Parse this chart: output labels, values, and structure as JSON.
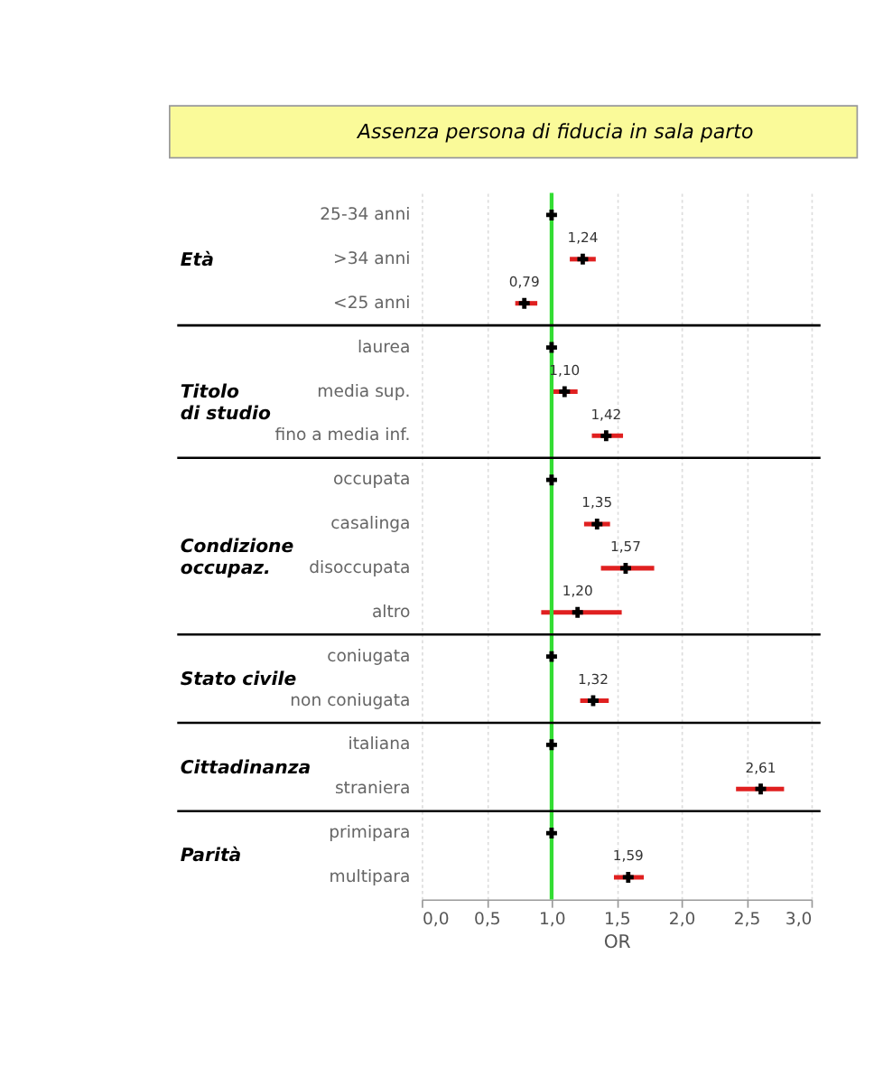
{
  "chart_data": {
    "type": "scatter",
    "title": "Assenza persona di fiducia in sala parto",
    "xlabel": "OR",
    "categories": [
      "25-34 anni",
      ">34 anni",
      "<25 anni",
      "laurea",
      "media sup.",
      "fino a media inf.",
      "occupata",
      "casalinga",
      "disoccupata",
      "altro",
      "coniugata",
      "non coniugata",
      "italiana",
      "straniera",
      "primipara",
      "multipara"
    ],
    "values": [
      1.0,
      1.24,
      0.79,
      1.0,
      1.1,
      1.42,
      1.0,
      1.35,
      1.57,
      1.2,
      1.0,
      1.32,
      1.0,
      2.61,
      1.0,
      1.59
    ],
    "errors": [
      null,
      [
        1.14,
        1.34
      ],
      [
        0.72,
        0.89
      ],
      null,
      [
        1.0,
        1.2
      ],
      [
        1.31,
        1.55
      ],
      null,
      [
        1.25,
        1.45
      ],
      [
        1.38,
        1.79
      ],
      [
        0.92,
        1.54
      ],
      null,
      [
        1.22,
        1.44
      ],
      null,
      [
        2.42,
        2.79
      ],
      null,
      [
        1.48,
        1.71
      ]
    ],
    "value_labels": [
      null,
      "1,24",
      "0,79",
      null,
      "1,10",
      "1,42",
      null,
      "1,35",
      "1,57",
      "1,20",
      null,
      "1,32",
      null,
      "2,61",
      null,
      "1,59"
    ],
    "orientation": "horizontal",
    "color": "#000000",
    "xlim": [
      0,
      3
    ],
    "xticks": [
      {
        "value": 0,
        "label": "0,0"
      },
      {
        "value": 0.5,
        "label": "0,5"
      },
      {
        "value": 1,
        "label": "1,0"
      },
      {
        "value": 1.5,
        "label": "1,5"
      },
      {
        "value": 2,
        "label": "2,0"
      },
      {
        "value": 2.5,
        "label": "2,5"
      },
      {
        "value": 3,
        "label": "3,0"
      }
    ],
    "grid": "x",
    "marker": "cross",
    "ref_lines": [
      {
        "axis": "x",
        "value": 1,
        "color": "#33dd33"
      }
    ],
    "annotations": [
      "Età",
      "Titolo\ndi studio",
      "Condizione\noccupaz.",
      "Stato civile",
      "Cittadinanza",
      "Parità"
    ]
  }
}
